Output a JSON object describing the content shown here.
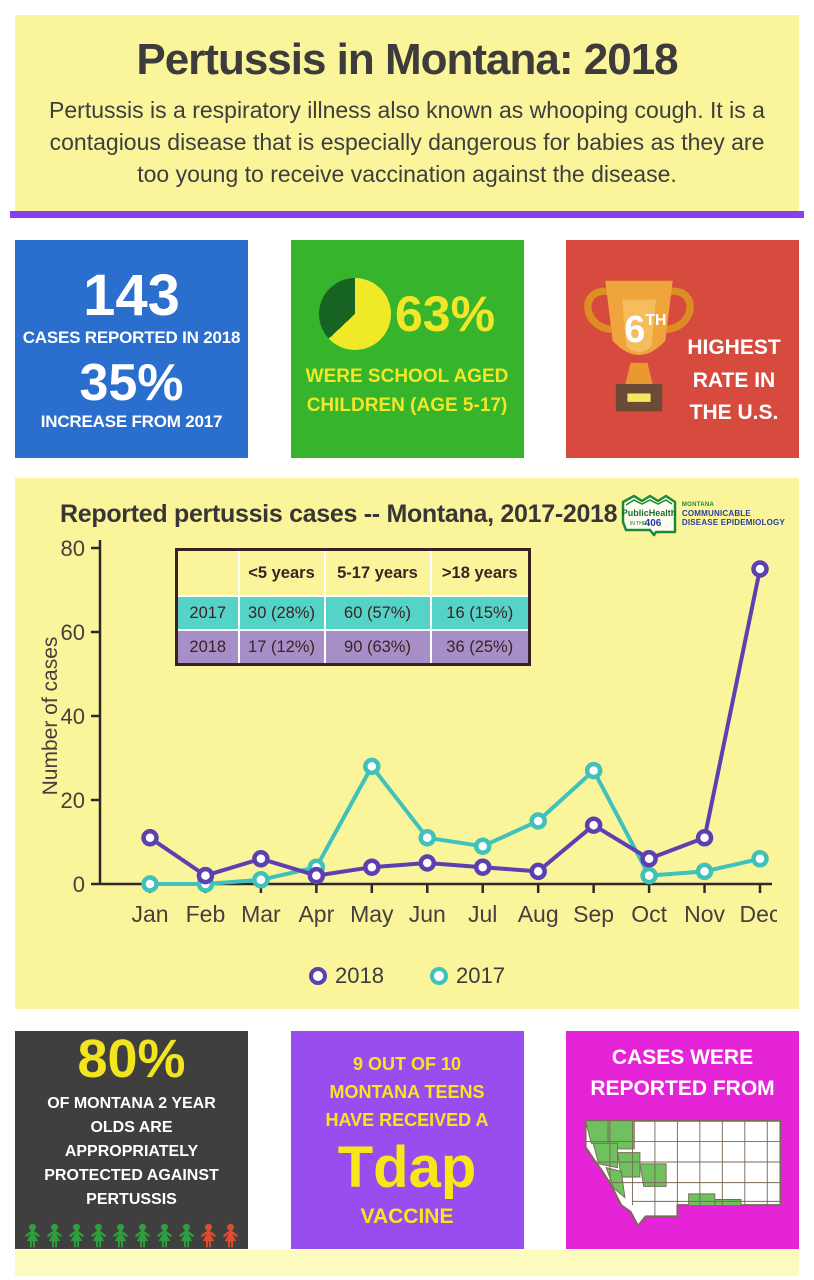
{
  "header": {
    "title": "Pertussis in Montana: 2018",
    "subtitle": "Pertussis is a respiratory illness also known as whooping cough. It is a contagious disease that is especially dangerous for babies as they are too young to receive vaccination against the disease."
  },
  "stats": {
    "blue": {
      "value1": "143",
      "label1": "CASES REPORTED IN 2018",
      "value2": "35%",
      "label2": "INCREASE FROM 2017"
    },
    "green": {
      "value": "63%",
      "label": "WERE SCHOOL AGED CHILDREN (AGE 5-17)",
      "pie_percent": 63
    },
    "red": {
      "rank": "6",
      "rank_suffix": "TH",
      "label": "HIGHEST RATE IN THE U.S."
    }
  },
  "chart_section": {
    "title": "Reported pertussis cases -- Montana, 2017-2018",
    "logo": {
      "org": "PublicHealth",
      "tagline_prefix": "IN THE",
      "tagline_number": "406",
      "state": "MONTANA",
      "line1": "COMMUNICABLE",
      "line2": "DISEASE EPIDEMIOLOGY"
    },
    "table": {
      "headers": [
        "",
        "<5 years",
        "5-17 years",
        ">18 years"
      ],
      "rows": [
        {
          "label": "2017",
          "cells": [
            "30 (28%)",
            "60 (57%)",
            "16 (15%)"
          ]
        },
        {
          "label": "2018",
          "cells": [
            "17 (12%)",
            "90 (63%)",
            "36 (25%)"
          ]
        }
      ]
    }
  },
  "chart_data": {
    "type": "line",
    "title": "Reported pertussis cases -- Montana, 2017-2018",
    "categories": [
      "Jan",
      "Feb",
      "Mar",
      "Apr",
      "May",
      "Jun",
      "Jul",
      "Aug",
      "Sep",
      "Oct",
      "Nov",
      "Dec"
    ],
    "series": [
      {
        "name": "2018",
        "color": "#5d40b0",
        "values": [
          11,
          2,
          6,
          2,
          4,
          5,
          4,
          3,
          14,
          6,
          11,
          75
        ]
      },
      {
        "name": "2017",
        "color": "#40c1b9",
        "values": [
          0,
          0,
          1,
          4,
          28,
          11,
          9,
          15,
          27,
          2,
          3,
          6
        ]
      }
    ],
    "xlabel": "",
    "ylabel": "Number of cases",
    "ylim": [
      0,
      80
    ],
    "yticks": [
      0,
      20,
      40,
      60,
      80
    ],
    "grid": false,
    "legend_position": "bottom"
  },
  "bottom": {
    "dark": {
      "value": "80%",
      "label": "OF MONTANA 2 YEAR OLDS ARE APPROPRIATELY PROTECTED AGAINST PERTUSSIS",
      "people_green": 8,
      "people_red": 2
    },
    "purple": {
      "intro": "9 OUT OF 10 MONTANA TEENS HAVE RECEIVED A",
      "vaccine": "Tdap",
      "suffix": "VACCINE"
    },
    "magenta": {
      "label": "CASES WERE REPORTED FROM"
    }
  },
  "colors": {
    "accent_purple": "#8a3fef",
    "panel_yellow": "#faf49b",
    "strip_yellow": "#fdfabd",
    "stat_blue": "#2a6fce",
    "stat_green": "#35b42c",
    "stat_red": "#d74b3f",
    "pie_yellow": "#f0e927",
    "pie_dark_green": "#176321",
    "series_2018": "#5d40b0",
    "series_2017": "#40c1b9",
    "table_row_2017": "#55d3c7",
    "table_row_2018": "#a68fc7",
    "table_border": "#3a2023",
    "box_dark": "#3f3f3f",
    "box_purple": "#9a4dee",
    "box_magenta": "#e523d7",
    "person_green": "#2ca03c",
    "person_red": "#e04b2e",
    "map_green": "#6fc05f",
    "trophy_gold": "#f0a43c",
    "trophy_base": "#6b4a38",
    "axis_color": "#2e2a28"
  }
}
